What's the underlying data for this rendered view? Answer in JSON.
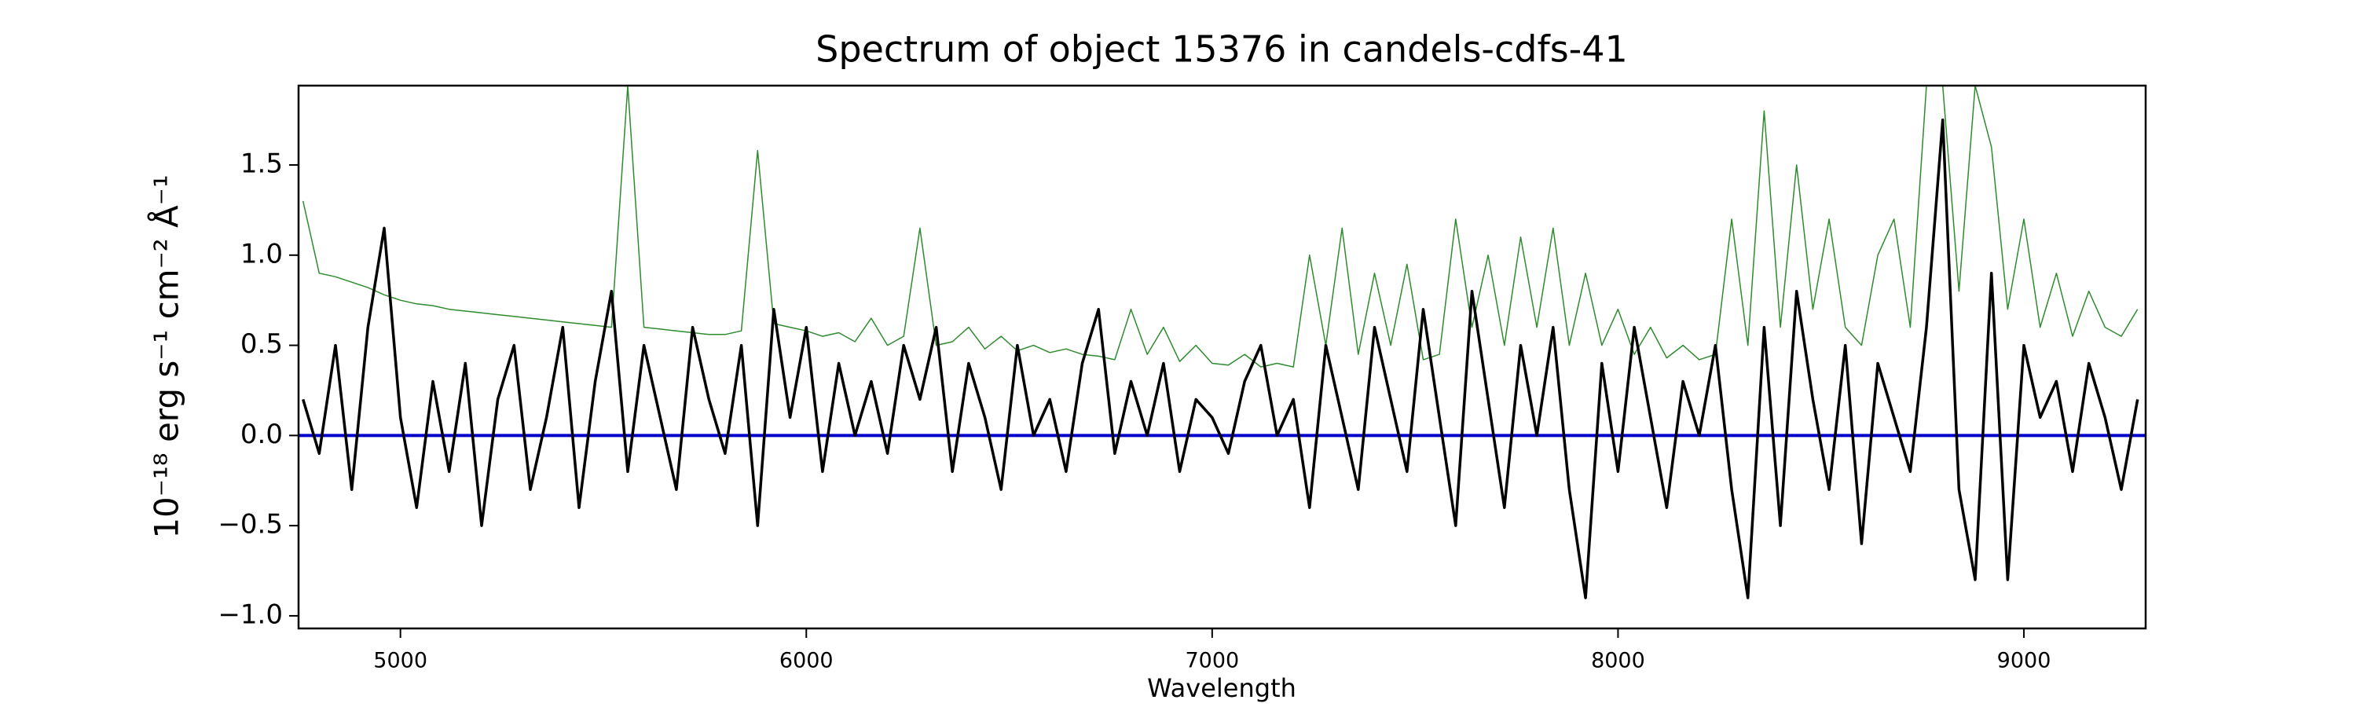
{
  "chart_data": {
    "type": "line",
    "title": "Spectrum of object 15376 in candels-cdfs-41",
    "xlabel": "Wavelength",
    "ylabel": "10⁻¹⁸ erg s⁻¹ cm⁻² Å⁻¹",
    "xlim": [
      4749,
      9300
    ],
    "ylim": [
      -1.07,
      1.94
    ],
    "xticks": [
      5000,
      6000,
      7000,
      8000,
      9000
    ],
    "yticks": [
      {
        "value": -1,
        "label": "−1.0"
      },
      {
        "value": -0.5,
        "label": "−0.5"
      },
      {
        "value": 0,
        "label": "0.0"
      },
      0.5,
      {
        "value": 1,
        "label": "1.0"
      },
      1.5
    ],
    "grid": false,
    "x": [
      4760,
      4800,
      4840,
      4880,
      4920,
      4960,
      5000,
      5040,
      5080,
      5120,
      5160,
      5200,
      5240,
      5280,
      5320,
      5360,
      5400,
      5440,
      5480,
      5520,
      5560,
      5600,
      5640,
      5680,
      5720,
      5760,
      5800,
      5840,
      5880,
      5920,
      5960,
      6000,
      6040,
      6080,
      6120,
      6160,
      6200,
      6240,
      6280,
      6320,
      6360,
      6400,
      6440,
      6480,
      6520,
      6560,
      6600,
      6640,
      6680,
      6720,
      6760,
      6800,
      6840,
      6880,
      6920,
      6960,
      7000,
      7040,
      7080,
      7120,
      7160,
      7200,
      7240,
      7280,
      7320,
      7360,
      7400,
      7440,
      7480,
      7520,
      7560,
      7600,
      7640,
      7680,
      7720,
      7760,
      7800,
      7840,
      7880,
      7920,
      7960,
      8000,
      8040,
      8080,
      8120,
      8160,
      8200,
      8240,
      8280,
      8320,
      8360,
      8400,
      8440,
      8480,
      8520,
      8560,
      8600,
      8640,
      8680,
      8720,
      8760,
      8800,
      8840,
      8880,
      8920,
      8960,
      9000,
      9040,
      9080,
      9120,
      9160,
      9200,
      9240,
      9280
    ],
    "series": [
      {
        "color": "#2e8b2e",
        "linewidth": 1.5,
        "values": [
          1.3,
          0.9,
          0.88,
          0.85,
          0.82,
          0.78,
          0.75,
          0.73,
          0.72,
          0.7,
          0.69,
          0.68,
          0.67,
          0.66,
          0.65,
          0.64,
          0.63,
          0.62,
          0.61,
          0.6,
          1.94,
          0.6,
          0.59,
          0.58,
          0.57,
          0.56,
          0.56,
          0.58,
          1.58,
          0.62,
          0.6,
          0.58,
          0.55,
          0.57,
          0.52,
          0.65,
          0.5,
          0.55,
          1.15,
          0.5,
          0.52,
          0.6,
          0.48,
          0.55,
          0.47,
          0.5,
          0.46,
          0.48,
          0.45,
          0.44,
          0.42,
          0.7,
          0.45,
          0.6,
          0.41,
          0.5,
          0.4,
          0.39,
          0.45,
          0.38,
          0.4,
          0.38,
          1.0,
          0.5,
          1.15,
          0.45,
          0.9,
          0.5,
          0.95,
          0.42,
          0.45,
          1.2,
          0.6,
          1.0,
          0.5,
          1.1,
          0.6,
          1.15,
          0.5,
          0.9,
          0.5,
          0.7,
          0.45,
          0.6,
          0.43,
          0.5,
          0.42,
          0.45,
          1.2,
          0.5,
          1.8,
          0.6,
          1.5,
          0.7,
          1.2,
          0.6,
          0.5,
          1.0,
          1.2,
          0.6,
          1.94,
          1.94,
          0.8,
          1.94,
          1.6,
          0.7,
          1.2,
          0.6,
          0.9,
          0.55,
          0.8,
          0.6,
          0.55,
          0.7
        ]
      },
      {
        "color": "#0000cc",
        "linewidth": 4,
        "x": [
          4749,
          9300
        ],
        "values": [
          0,
          0
        ]
      },
      {
        "color": "#000000",
        "linewidth": 3.5,
        "values": [
          0.2,
          -0.1,
          0.5,
          -0.3,
          0.6,
          1.15,
          0.1,
          -0.4,
          0.3,
          -0.2,
          0.4,
          -0.5,
          0.2,
          0.5,
          -0.3,
          0.1,
          0.6,
          -0.4,
          0.3,
          0.8,
          -0.2,
          0.5,
          0.1,
          -0.3,
          0.6,
          0.2,
          -0.1,
          0.5,
          -0.5,
          0.7,
          0.1,
          0.6,
          -0.2,
          0.4,
          0.0,
          0.3,
          -0.1,
          0.5,
          0.2,
          0.6,
          -0.2,
          0.4,
          0.1,
          -0.3,
          0.5,
          0.0,
          0.2,
          -0.2,
          0.4,
          0.7,
          -0.1,
          0.3,
          0.0,
          0.4,
          -0.2,
          0.2,
          0.1,
          -0.1,
          0.3,
          0.5,
          0.0,
          0.2,
          -0.4,
          0.5,
          0.1,
          -0.3,
          0.6,
          0.2,
          -0.2,
          0.7,
          0.1,
          -0.5,
          0.8,
          0.2,
          -0.4,
          0.5,
          0.0,
          0.6,
          -0.3,
          -0.9,
          0.4,
          -0.2,
          0.6,
          0.1,
          -0.4,
          0.3,
          0.0,
          0.5,
          -0.3,
          -0.9,
          0.6,
          -0.5,
          0.8,
          0.2,
          -0.3,
          0.5,
          -0.6,
          0.4,
          0.1,
          -0.2,
          0.6,
          1.75,
          -0.3,
          -0.8,
          0.9,
          -0.8,
          0.5,
          0.1,
          0.3,
          -0.2,
          0.4,
          0.1,
          -0.3,
          0.2
        ]
      }
    ]
  }
}
